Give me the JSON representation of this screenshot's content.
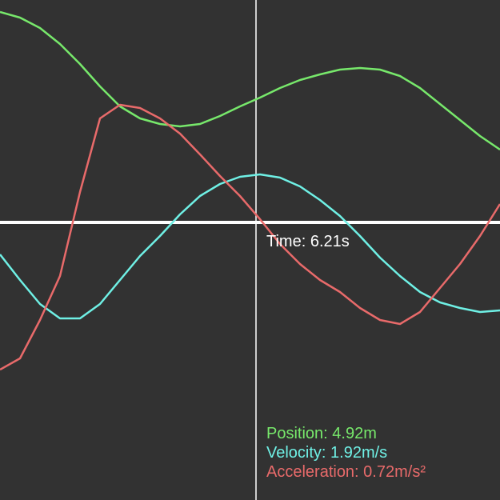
{
  "chart_data": {
    "type": "line",
    "x": [
      0,
      25,
      50,
      75,
      100,
      125,
      150,
      175,
      200,
      225,
      250,
      275,
      300,
      325,
      350,
      375,
      400,
      425,
      450,
      475,
      500,
      525,
      550,
      575,
      600,
      625
    ],
    "xlim": [
      0,
      625
    ],
    "ylim": [
      -347,
      278
    ],
    "background": "#323232",
    "series": [
      {
        "name": "Position",
        "color": "#77e86b",
        "values": [
          263,
          256,
          243,
          223,
          198,
          170,
          145,
          130,
          123,
          120,
          123,
          133,
          145,
          156,
          168,
          178,
          185,
          191,
          193,
          191,
          183,
          168,
          148,
          128,
          108,
          91
        ]
      },
      {
        "name": "Velocity",
        "color": "#6ff0e5",
        "values": [
          -40,
          -72,
          -102,
          -120,
          -120,
          -102,
          -72,
          -42,
          -17,
          10,
          33,
          48,
          57,
          60,
          56,
          45,
          28,
          8,
          -17,
          -44,
          -67,
          -87,
          -100,
          -107,
          -112,
          -110
        ]
      },
      {
        "name": "Acceleration",
        "color": "#e86a6a",
        "values": [
          -184,
          -170,
          -122,
          -67,
          38,
          130,
          147,
          143,
          130,
          111,
          85,
          58,
          33,
          4,
          -27,
          -52,
          -72,
          -87,
          -107,
          -122,
          -127,
          -112,
          -82,
          -52,
          -17,
          23
        ]
      }
    ],
    "cursor_x": 320,
    "cursor_label": "Time: 6.21s",
    "readouts": [
      "Position: 4.92m",
      "Velocity: 1.92m/s",
      "Acceleration: 0.72m/s²"
    ]
  }
}
